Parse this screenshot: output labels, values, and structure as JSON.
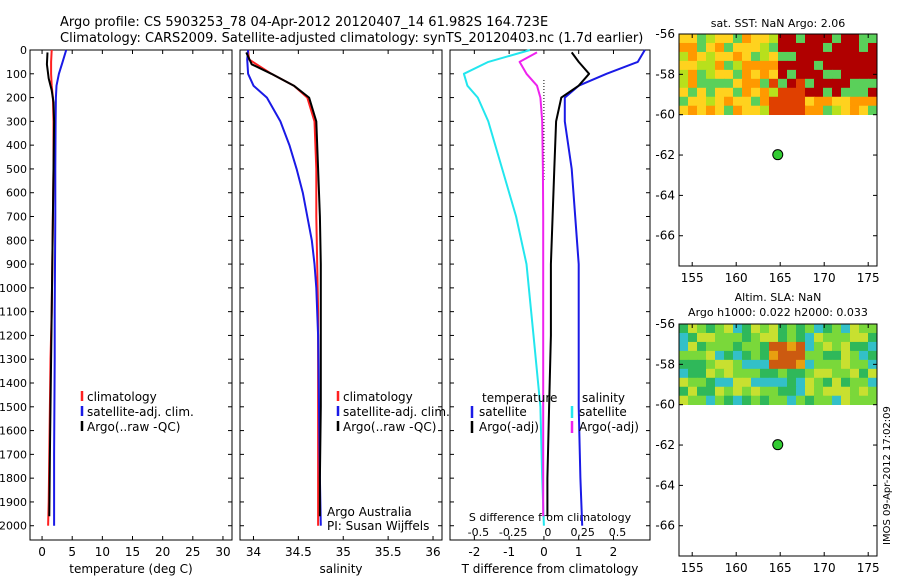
{
  "title": {
    "line1": "Argo profile: CS 5903253_78 04-Apr-2012 20120407_14 61.982S 164.723E",
    "line2": "Climatology: CARS2009. Satellite-adjusted climatology: synTS_20120403.nc (1.7d earlier)"
  },
  "colors": {
    "red": "#ff2020",
    "blue": "#1a1ae6",
    "black": "#000000",
    "cyan": "#22e6ee",
    "magenta": "#ee22ee",
    "dot": "#33cc33"
  },
  "depth_ticks": [
    "0",
    "100",
    "200",
    "300",
    "400",
    "500",
    "600",
    "700",
    "800",
    "900",
    "1000",
    "1100",
    "1200",
    "1300",
    "1400",
    "1500",
    "1600",
    "1700",
    "1800",
    "1900",
    "2000"
  ],
  "chart_data": [
    {
      "type": "line",
      "panel": "temperature",
      "xlabel": "temperature (deg C)",
      "xlim": [
        -2,
        31.5
      ],
      "ylim": [
        2060,
        0
      ],
      "xticks": [
        0,
        5,
        10,
        15,
        20,
        25,
        30
      ],
      "legend": [
        "climatology",
        "satellite-adj. clim.",
        "Argo(..raw -QC)"
      ],
      "series": [
        {
          "name": "climatology",
          "color": "red",
          "x": [
            1.6,
            1.5,
            1.5,
            1.6,
            1.8,
            1.9,
            1.9,
            1.8,
            1.7,
            1.6,
            1.4,
            1.3,
            1.2,
            1.1,
            1.0
          ],
          "y": [
            0,
            50,
            100,
            150,
            200,
            300,
            500,
            700,
            900,
            1100,
            1300,
            1500,
            1700,
            1900,
            2000
          ]
        },
        {
          "name": "satellite-adj. clim.",
          "color": "blue",
          "x": [
            4.0,
            3.4,
            2.8,
            2.4,
            2.3,
            2.25,
            2.2,
            2.2,
            2.15,
            2.1,
            2.1,
            2.05,
            2.0,
            2.0,
            2.0
          ],
          "y": [
            0,
            50,
            100,
            150,
            200,
            300,
            500,
            700,
            900,
            1100,
            1300,
            1500,
            1700,
            1900,
            2000
          ]
        },
        {
          "name": "Argo(..raw -QC)",
          "color": "black",
          "x": [
            0.9,
            0.8,
            1.1,
            1.6,
            1.9,
            2.0,
            1.9,
            1.8,
            1.7,
            1.6,
            1.5,
            1.4,
            1.3,
            1.2
          ],
          "y": [
            10,
            60,
            120,
            170,
            220,
            300,
            500,
            700,
            900,
            1100,
            1300,
            1500,
            1700,
            1960
          ]
        }
      ]
    },
    {
      "type": "line",
      "panel": "salinity",
      "xlabel": "salinity",
      "xlim": [
        33.85,
        36.1
      ],
      "ylim": [
        2060,
        0
      ],
      "xticks": [
        34,
        34.5,
        35,
        35.5,
        36
      ],
      "legend": [
        "climatology",
        "satellite-adj. clim.",
        "Argo(..raw -QC)"
      ],
      "annotation": [
        "Argo Australia",
        "PI: Susan Wijffels"
      ],
      "series": [
        {
          "name": "climatology",
          "color": "red",
          "x": [
            33.94,
            33.95,
            34.2,
            34.45,
            34.6,
            34.68,
            34.7,
            34.7,
            34.71,
            34.72,
            34.72,
            34.72,
            34.72,
            34.72,
            34.72
          ],
          "y": [
            0,
            40,
            100,
            150,
            200,
            300,
            500,
            700,
            900,
            1100,
            1300,
            1500,
            1700,
            1900,
            2000
          ]
        },
        {
          "name": "satellite-adj. clim.",
          "color": "blue",
          "x": [
            33.94,
            33.93,
            33.94,
            34.0,
            34.15,
            34.3,
            34.4,
            34.48,
            34.55,
            34.6,
            34.65,
            34.68,
            34.7,
            34.72,
            34.73,
            34.74,
            34.75
          ],
          "y": [
            0,
            40,
            100,
            150,
            200,
            300,
            400,
            500,
            600,
            700,
            800,
            900,
            1000,
            1200,
            1500,
            1800,
            2000
          ]
        },
        {
          "name": "Argo(..raw -QC)",
          "color": "black",
          "x": [
            33.92,
            33.98,
            34.2,
            34.45,
            34.62,
            34.7,
            34.72,
            34.74,
            34.75,
            34.75,
            34.75,
            34.74,
            34.74
          ],
          "y": [
            10,
            60,
            100,
            150,
            200,
            300,
            500,
            700,
            900,
            1200,
            1500,
            1800,
            1960
          ]
        }
      ]
    },
    {
      "type": "line",
      "panel": "difference",
      "xlabel": "T difference from climatology",
      "xlabel_top": "S difference from climatology",
      "xlim": [
        -2.7,
        3.05
      ],
      "ylim": [
        2060,
        0
      ],
      "xticks": [
        -2,
        -1,
        0,
        1,
        2
      ],
      "xticklabels_top": [
        "-0.5",
        "-0.25",
        "0",
        "0.25",
        "0.5"
      ],
      "legend_headers": [
        "temperature",
        "salinity"
      ],
      "legend": [
        "satellite",
        "Argo(-adj)",
        "satellite",
        "Argo(-adj)"
      ],
      "series": [
        {
          "name": "temperature satellite",
          "color": "blue",
          "x": [
            2.9,
            2.7,
            1.8,
            1.0,
            0.6,
            0.6,
            0.8,
            0.9,
            1.0,
            1.0,
            1.0,
            1.05,
            1.1
          ],
          "y": [
            0,
            50,
            100,
            150,
            200,
            300,
            500,
            700,
            900,
            1200,
            1500,
            1800,
            2000
          ]
        },
        {
          "name": "temperature Argo(-adj)",
          "color": "black",
          "x": [
            0.8,
            1.0,
            1.3,
            1.0,
            0.5,
            0.35,
            0.3,
            0.25,
            0.2,
            0.2,
            0.15,
            0.1,
            0.1
          ],
          "y": [
            10,
            50,
            100,
            150,
            200,
            300,
            500,
            700,
            900,
            1200,
            1500,
            1800,
            1960
          ]
        },
        {
          "name": "salinity satellite",
          "color": "cyan",
          "x": [
            -0.4,
            -1.6,
            -2.3,
            -2.2,
            -1.9,
            -1.6,
            -1.2,
            -0.8,
            -0.5,
            -0.3,
            -0.1,
            -0.05,
            0.0
          ],
          "y": [
            0,
            50,
            100,
            150,
            200,
            300,
            500,
            700,
            900,
            1200,
            1500,
            1800,
            2000
          ]
        },
        {
          "name": "salinity Argo(-adj)",
          "color": "magenta",
          "x": [
            -0.2,
            -0.7,
            -0.5,
            -0.2,
            -0.1,
            -0.05,
            -0.03,
            -0.02,
            -0.02,
            -0.02,
            -0.02,
            -0.02,
            -0.02
          ],
          "y": [
            10,
            50,
            100,
            150,
            200,
            300,
            500,
            700,
            900,
            1200,
            1500,
            1800,
            1960
          ]
        }
      ]
    },
    {
      "type": "heatmap",
      "panel": "sst-map",
      "title": "sat. SST: NaN Argo: 2.06",
      "xlim": [
        153.5,
        176
      ],
      "ylim": [
        -67.5,
        -56
      ],
      "xticks": [
        155,
        160,
        165,
        170,
        175
      ],
      "yticks": [
        -56,
        -58,
        -60,
        -62,
        -64,
        -66
      ],
      "data_extent": {
        "lat_min": -60,
        "lat_max": -56
      },
      "marker": {
        "lon": 164.723,
        "lat": -61.982
      }
    },
    {
      "type": "heatmap",
      "panel": "sla-map",
      "title": "Altim. SLA: NaN",
      "subtitle": "Argo h1000: 0.022 h2000: 0.033",
      "xlim": [
        153.5,
        176
      ],
      "ylim": [
        -67.5,
        -56
      ],
      "xticks": [
        155,
        160,
        165,
        170,
        175
      ],
      "yticks": [
        -56,
        -58,
        -60,
        -62,
        -64,
        -66
      ],
      "data_extent": {
        "lat_min": -60,
        "lat_max": -56
      },
      "marker": {
        "lon": 164.723,
        "lat": -61.982
      }
    }
  ],
  "footer_stamp": "IMOS 09-Apr-2012 17:02:09"
}
